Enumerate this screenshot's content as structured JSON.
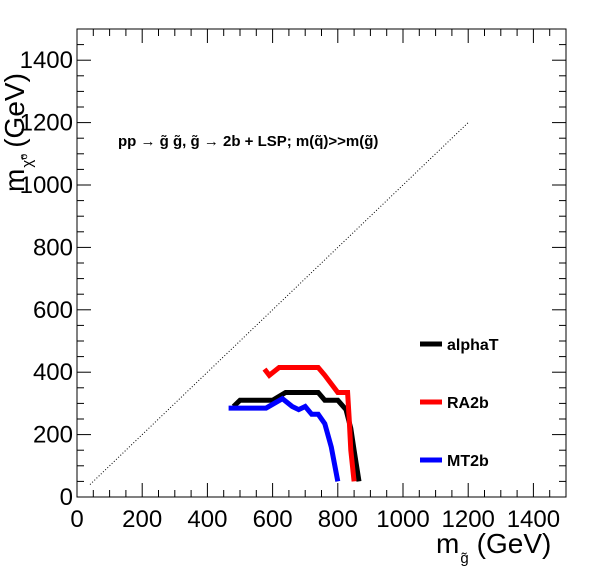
{
  "chart_data": {
    "type": "line",
    "xlabel": {
      "main": "m",
      "sub": "g̃",
      "unit": "(GeV)"
    },
    "ylabel": {
      "main": "m",
      "sub": "χ̃⁰",
      "unit": "(GeV)"
    },
    "xlim": [
      0,
      1500
    ],
    "ylim": [
      0,
      1500
    ],
    "xticks": [
      "0",
      "200",
      "400",
      "600",
      "800",
      "1000",
      "1200",
      "1400"
    ],
    "yticks": [
      "0",
      "200",
      "400",
      "600",
      "800",
      "1000",
      "1200",
      "1400"
    ],
    "annotation": "pp → g̃ g̃, g̃ → 2b + LSP; m(q̃)>>m(g̃)",
    "grid": false,
    "legend_position": "right",
    "diagonal": {
      "x": [
        40,
        1200
      ],
      "y": [
        40,
        1200
      ],
      "style": "dotted"
    },
    "series": [
      {
        "name": "alphaT",
        "color": "#000000",
        "x": [
          480,
          500,
          600,
          640,
          740,
          760,
          800,
          825,
          840,
          850,
          865
        ],
        "y": [
          290,
          310,
          310,
          335,
          335,
          310,
          310,
          280,
          220,
          150,
          50
        ]
      },
      {
        "name": "RA2b",
        "color": "#ff0000",
        "x": [
          575,
          590,
          620,
          740,
          760,
          800,
          830,
          835,
          840,
          850
        ],
        "y": [
          410,
          390,
          415,
          415,
          390,
          335,
          335,
          250,
          150,
          50
        ]
      },
      {
        "name": "MT2b",
        "color": "#0000ff",
        "x": [
          465,
          500,
          580,
          630,
          660,
          680,
          700,
          720,
          740,
          760,
          780,
          800
        ],
        "y": [
          285,
          285,
          285,
          315,
          290,
          280,
          290,
          265,
          265,
          235,
          160,
          50
        ]
      }
    ]
  }
}
